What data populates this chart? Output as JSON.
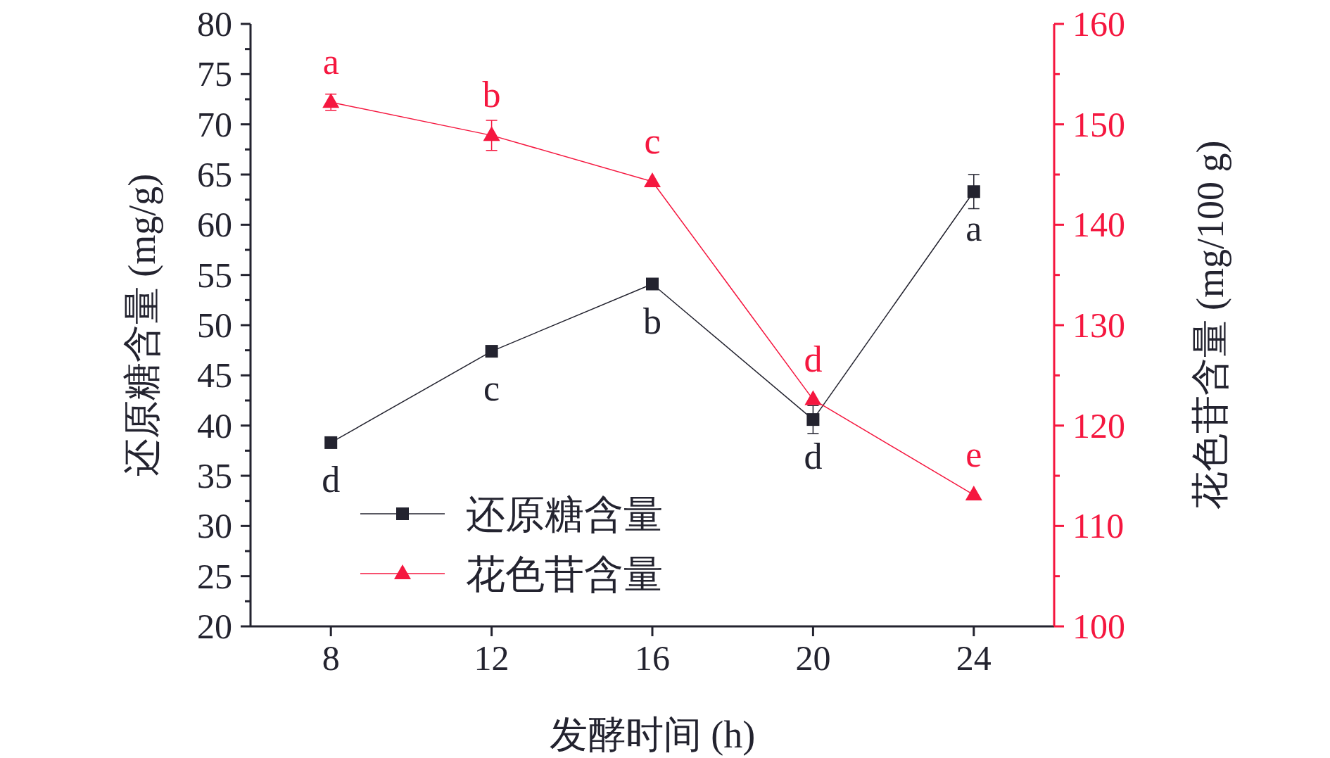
{
  "chart_data": {
    "type": "line",
    "xlabel": "发酵时间 (h)",
    "ylabel": "还原糖含量 (mg/g)",
    "y2label": "花色苷含量 (mg/100 g)",
    "x": [
      8,
      12,
      16,
      20,
      24
    ],
    "xlim": [
      6,
      26
    ],
    "xticks": [
      8,
      12,
      16,
      20,
      24
    ],
    "ylim": [
      20,
      80
    ],
    "yticks": [
      20,
      25,
      30,
      35,
      40,
      45,
      50,
      55,
      60,
      65,
      70,
      75,
      80
    ],
    "y2lim": [
      100,
      160
    ],
    "y2ticks": [
      100,
      110,
      120,
      130,
      140,
      150,
      160
    ],
    "legend": "bottom left",
    "grid": false,
    "series": [
      {
        "name": "还原糖含量",
        "color": "#23232f",
        "marker": "square",
        "values": [
          38.3,
          47.4,
          54.1,
          40.6,
          63.3
        ],
        "errors": [
          null,
          null,
          null,
          1.4,
          1.7
        ],
        "value_labels": [
          "d",
          "c",
          "b",
          "d",
          "a"
        ]
      },
      {
        "name": "花色苷含量",
        "color": "#f5173f",
        "marker": "triangle",
        "axis": "y2",
        "values": [
          152.2,
          148.9,
          144.3,
          122.6,
          113.1
        ],
        "errors": [
          0.8,
          1.5,
          null,
          null,
          null
        ],
        "value_labels": [
          "a",
          "b",
          "c",
          "d",
          "e"
        ]
      }
    ]
  }
}
